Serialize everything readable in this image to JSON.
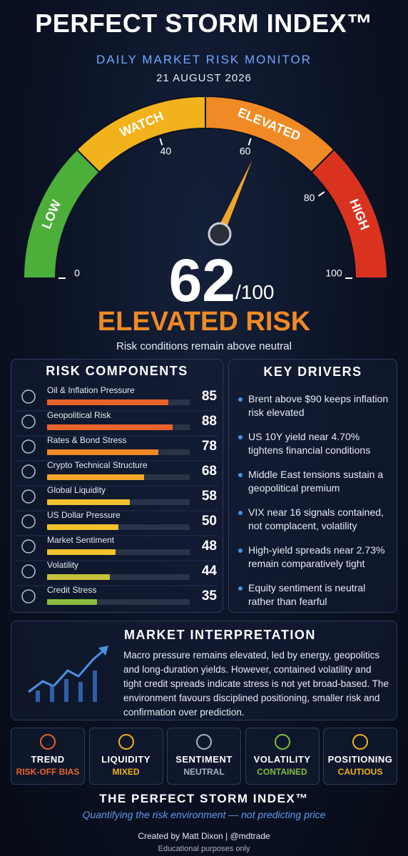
{
  "header": {
    "title": "PERFECT STORM INDEX™",
    "subtitle": "DAILY MARKET RISK MONITOR",
    "date": "21 AUGUST 2026"
  },
  "gauge": {
    "zones": [
      "LOW",
      "WATCH",
      "ELEVATED",
      "HIGH"
    ],
    "zone_colors": [
      "#4caf3a",
      "#f2b21b",
      "#f08a24",
      "#d9331f"
    ],
    "ticks": [
      0,
      40,
      60,
      80,
      100
    ],
    "value": 62,
    "scale_label": "/100",
    "status": "ELEVATED RISK",
    "caption": "Risk conditions remain above neutral"
  },
  "components": {
    "title": "RISK COMPONENTS",
    "items": [
      {
        "label": "Oil & Inflation Pressure",
        "value": 85,
        "color": "#e8632a"
      },
      {
        "label": "Geopolitical Risk",
        "value": 88,
        "color": "#e8632a"
      },
      {
        "label": "Rates & Bond Stress",
        "value": 78,
        "color": "#f08a24"
      },
      {
        "label": "Crypto Technical Structure",
        "value": 68,
        "color": "#f3a52a"
      },
      {
        "label": "Global Liquidity",
        "value": 58,
        "color": "#f2c12e"
      },
      {
        "label": "US Dollar Pressure",
        "value": 50,
        "color": "#f2c12e"
      },
      {
        "label": "Market Sentiment",
        "value": 48,
        "color": "#f2c12e"
      },
      {
        "label": "Volatility",
        "value": 44,
        "color": "#c9c23a"
      },
      {
        "label": "Credit Stress",
        "value": 35,
        "color": "#8dbb3e"
      }
    ]
  },
  "drivers": {
    "title": "KEY DRIVERS",
    "items": [
      "Brent above $90 keeps inflation risk elevated",
      "US 10Y yield near 4.70% tightens financial conditions",
      "Middle East tensions sustain a geopolitical premium",
      "VIX near 16 signals contained, not complacent, volatility",
      "High-yield spreads near 2.73% remain comparatively tight",
      "Equity sentiment is neutral rather than fearful"
    ]
  },
  "interpretation": {
    "title": "MARKET INTERPRETATION",
    "text": "Macro pressure remains elevated, led by energy, geopolitics and long-duration yields. However, contained volatility and tight credit spreads indicate stress is not yet broad-based. The environment favours disciplined positioning, smaller risk and confirmation over prediction."
  },
  "tiles": [
    {
      "label": "TREND",
      "status": "RISK-OFF BIAS",
      "color": "#e8632a"
    },
    {
      "label": "LIQUIDITY",
      "status": "MIXED",
      "color": "#f2b21b"
    },
    {
      "label": "SENTIMENT",
      "status": "NEUTRAL",
      "color": "#aab3c5"
    },
    {
      "label": "VOLATILITY",
      "status": "CONTAINED",
      "color": "#7fbf3f"
    },
    {
      "label": "POSITIONING",
      "status": "CAUTIOUS",
      "color": "#f2b21b"
    }
  ],
  "footer": {
    "title": "THE PERFECT STORM INDEX™",
    "tagline": "Quantifying the risk environment — not predicting price",
    "credit": "Created by Matt Dixon | @mdtrade",
    "disclaimer": "Educational purposes only"
  }
}
